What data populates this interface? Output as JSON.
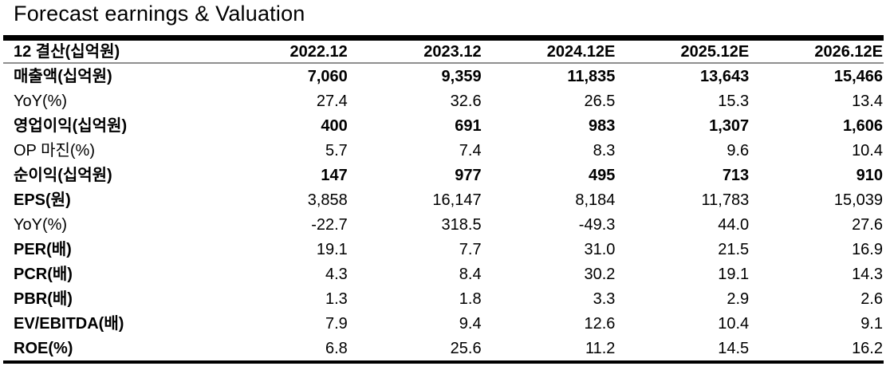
{
  "title": "Forecast earnings & Valuation",
  "table": {
    "header": [
      "12 결산(십억원)",
      "2022.12",
      "2023.12",
      "2024.12E",
      "2025.12E",
      "2026.12E"
    ],
    "rows": [
      {
        "label": "매출액(십억원)",
        "bold_label": true,
        "bold_values": true,
        "values": [
          "7,060",
          "9,359",
          "11,835",
          "13,643",
          "15,466"
        ]
      },
      {
        "label": "YoY(%)",
        "bold_label": false,
        "bold_values": false,
        "values": [
          "27.4",
          "32.6",
          "26.5",
          "15.3",
          "13.4"
        ]
      },
      {
        "label": "영업이익(십억원)",
        "bold_label": true,
        "bold_values": true,
        "values": [
          "400",
          "691",
          "983",
          "1,307",
          "1,606"
        ]
      },
      {
        "label": "OP 마진(%)",
        "bold_label": false,
        "bold_values": false,
        "values": [
          "5.7",
          "7.4",
          "8.3",
          "9.6",
          "10.4"
        ]
      },
      {
        "label": "순이익(십억원)",
        "bold_label": true,
        "bold_values": true,
        "values": [
          "147",
          "977",
          "495",
          "713",
          "910"
        ]
      },
      {
        "label": "EPS(원)",
        "bold_label": true,
        "bold_values": false,
        "values": [
          "3,858",
          "16,147",
          "8,184",
          "11,783",
          "15,039"
        ]
      },
      {
        "label": "YoY(%)",
        "bold_label": false,
        "bold_values": false,
        "values": [
          "-22.7",
          "318.5",
          "-49.3",
          "44.0",
          "27.6"
        ]
      },
      {
        "label": "PER(배)",
        "bold_label": true,
        "bold_values": false,
        "values": [
          "19.1",
          "7.7",
          "31.0",
          "21.5",
          "16.9"
        ]
      },
      {
        "label": "PCR(배)",
        "bold_label": true,
        "bold_values": false,
        "values": [
          "4.3",
          "8.4",
          "30.2",
          "19.1",
          "14.3"
        ]
      },
      {
        "label": "PBR(배)",
        "bold_label": true,
        "bold_values": false,
        "values": [
          "1.3",
          "1.8",
          "3.3",
          "2.9",
          "2.6"
        ]
      },
      {
        "label": "EV/EBITDA(배)",
        "bold_label": true,
        "bold_values": false,
        "values": [
          "7.9",
          "9.4",
          "12.6",
          "10.4",
          "9.1"
        ]
      },
      {
        "label": "ROE(%)",
        "bold_label": true,
        "bold_values": false,
        "values": [
          "6.8",
          "25.6",
          "11.2",
          "14.5",
          "16.2"
        ]
      }
    ]
  },
  "chart_data": {
    "type": "table",
    "title": "Forecast earnings & Valuation",
    "columns": [
      "12 결산(십억원)",
      "2022.12",
      "2023.12",
      "2024.12E",
      "2025.12E",
      "2026.12E"
    ],
    "rows": [
      [
        "매출액(십억원)",
        7060,
        9359,
        11835,
        13643,
        15466
      ],
      [
        "YoY(%)",
        27.4,
        32.6,
        26.5,
        15.3,
        13.4
      ],
      [
        "영업이익(십억원)",
        400,
        691,
        983,
        1307,
        1606
      ],
      [
        "OP 마진(%)",
        5.7,
        7.4,
        8.3,
        9.6,
        10.4
      ],
      [
        "순이익(십억원)",
        147,
        977,
        495,
        713,
        910
      ],
      [
        "EPS(원)",
        3858,
        16147,
        8184,
        11783,
        15039
      ],
      [
        "YoY(%)",
        -22.7,
        318.5,
        -49.3,
        44.0,
        27.6
      ],
      [
        "PER(배)",
        19.1,
        7.7,
        31.0,
        21.5,
        16.9
      ],
      [
        "PCR(배)",
        4.3,
        8.4,
        30.2,
        19.1,
        14.3
      ],
      [
        "PBR(배)",
        1.3,
        1.8,
        3.3,
        2.9,
        2.6
      ],
      [
        "EV/EBITDA(배)",
        7.9,
        9.4,
        12.6,
        10.4,
        9.1
      ],
      [
        "ROE(%)",
        6.8,
        25.6,
        11.2,
        14.5,
        16.2
      ]
    ]
  }
}
